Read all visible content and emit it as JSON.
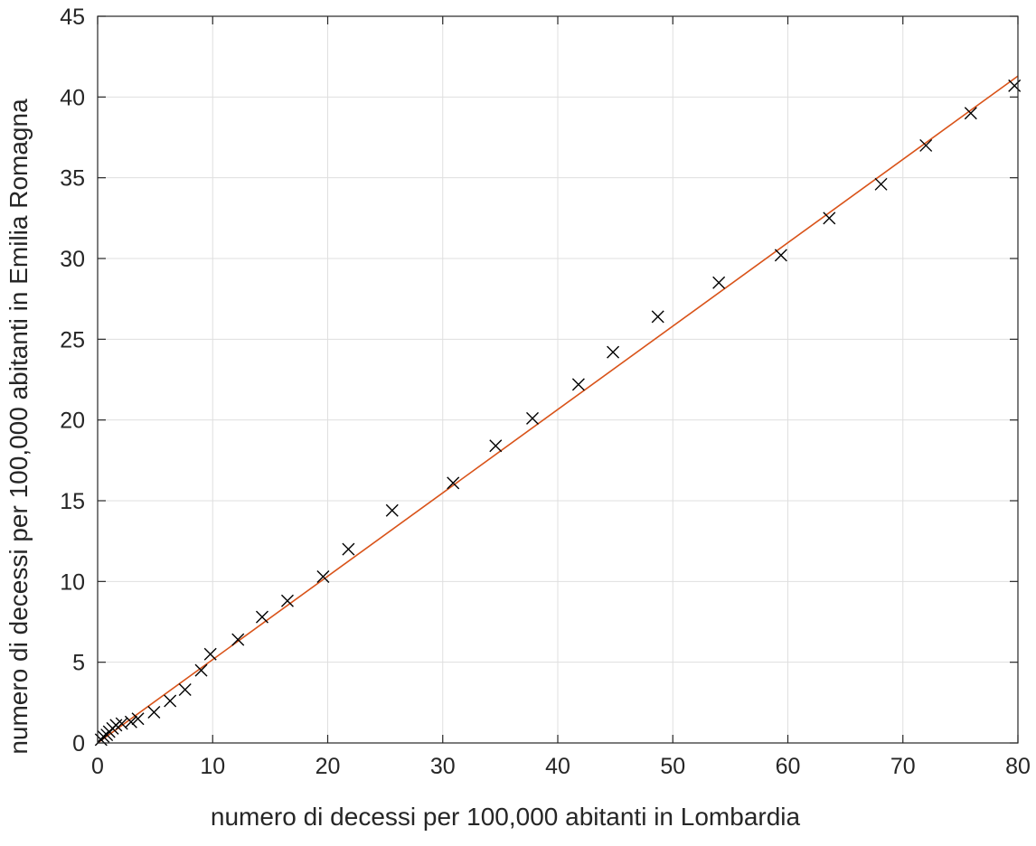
{
  "chart_data": {
    "type": "scatter",
    "xlabel": "numero di decessi per 100,000 abitanti in Lombardia",
    "ylabel": "numero di decessi per 100,000 abitanti in Emilia Romagna",
    "xlim": [
      0,
      80
    ],
    "ylim": [
      0,
      45
    ],
    "xticks": [
      0,
      10,
      20,
      30,
      40,
      50,
      60,
      70,
      80
    ],
    "yticks": [
      0,
      5,
      10,
      15,
      20,
      25,
      30,
      35,
      40,
      45
    ],
    "grid": true,
    "series": [
      {
        "type": "scatter",
        "marker": "x",
        "color": "#000000",
        "points": [
          [
            0.3,
            0.2
          ],
          [
            0.5,
            0.4
          ],
          [
            0.8,
            0.5
          ],
          [
            1.0,
            0.7
          ],
          [
            1.3,
            0.9
          ],
          [
            1.6,
            1.1
          ],
          [
            2.1,
            1.2
          ],
          [
            2.9,
            1.3
          ],
          [
            3.5,
            1.5
          ],
          [
            4.9,
            1.9
          ],
          [
            6.3,
            2.6
          ],
          [
            7.6,
            3.3
          ],
          [
            9.0,
            4.5
          ],
          [
            9.8,
            5.5
          ],
          [
            12.2,
            6.4
          ],
          [
            14.3,
            7.8
          ],
          [
            16.5,
            8.8
          ],
          [
            19.6,
            10.3
          ],
          [
            21.8,
            12.0
          ],
          [
            25.6,
            14.4
          ],
          [
            30.9,
            16.1
          ],
          [
            34.6,
            18.4
          ],
          [
            37.8,
            20.1
          ],
          [
            41.8,
            22.2
          ],
          [
            44.8,
            24.2
          ],
          [
            48.7,
            26.4
          ],
          [
            54.0,
            28.5
          ],
          [
            59.4,
            30.2
          ],
          [
            63.6,
            32.5
          ],
          [
            68.1,
            34.6
          ],
          [
            72.0,
            37.0
          ],
          [
            75.9,
            39.0
          ],
          [
            79.7,
            40.7
          ]
        ]
      },
      {
        "type": "line",
        "color": "#d95319",
        "points": [
          [
            0.0,
            0.0
          ],
          [
            80.0,
            41.3
          ]
        ]
      }
    ]
  }
}
